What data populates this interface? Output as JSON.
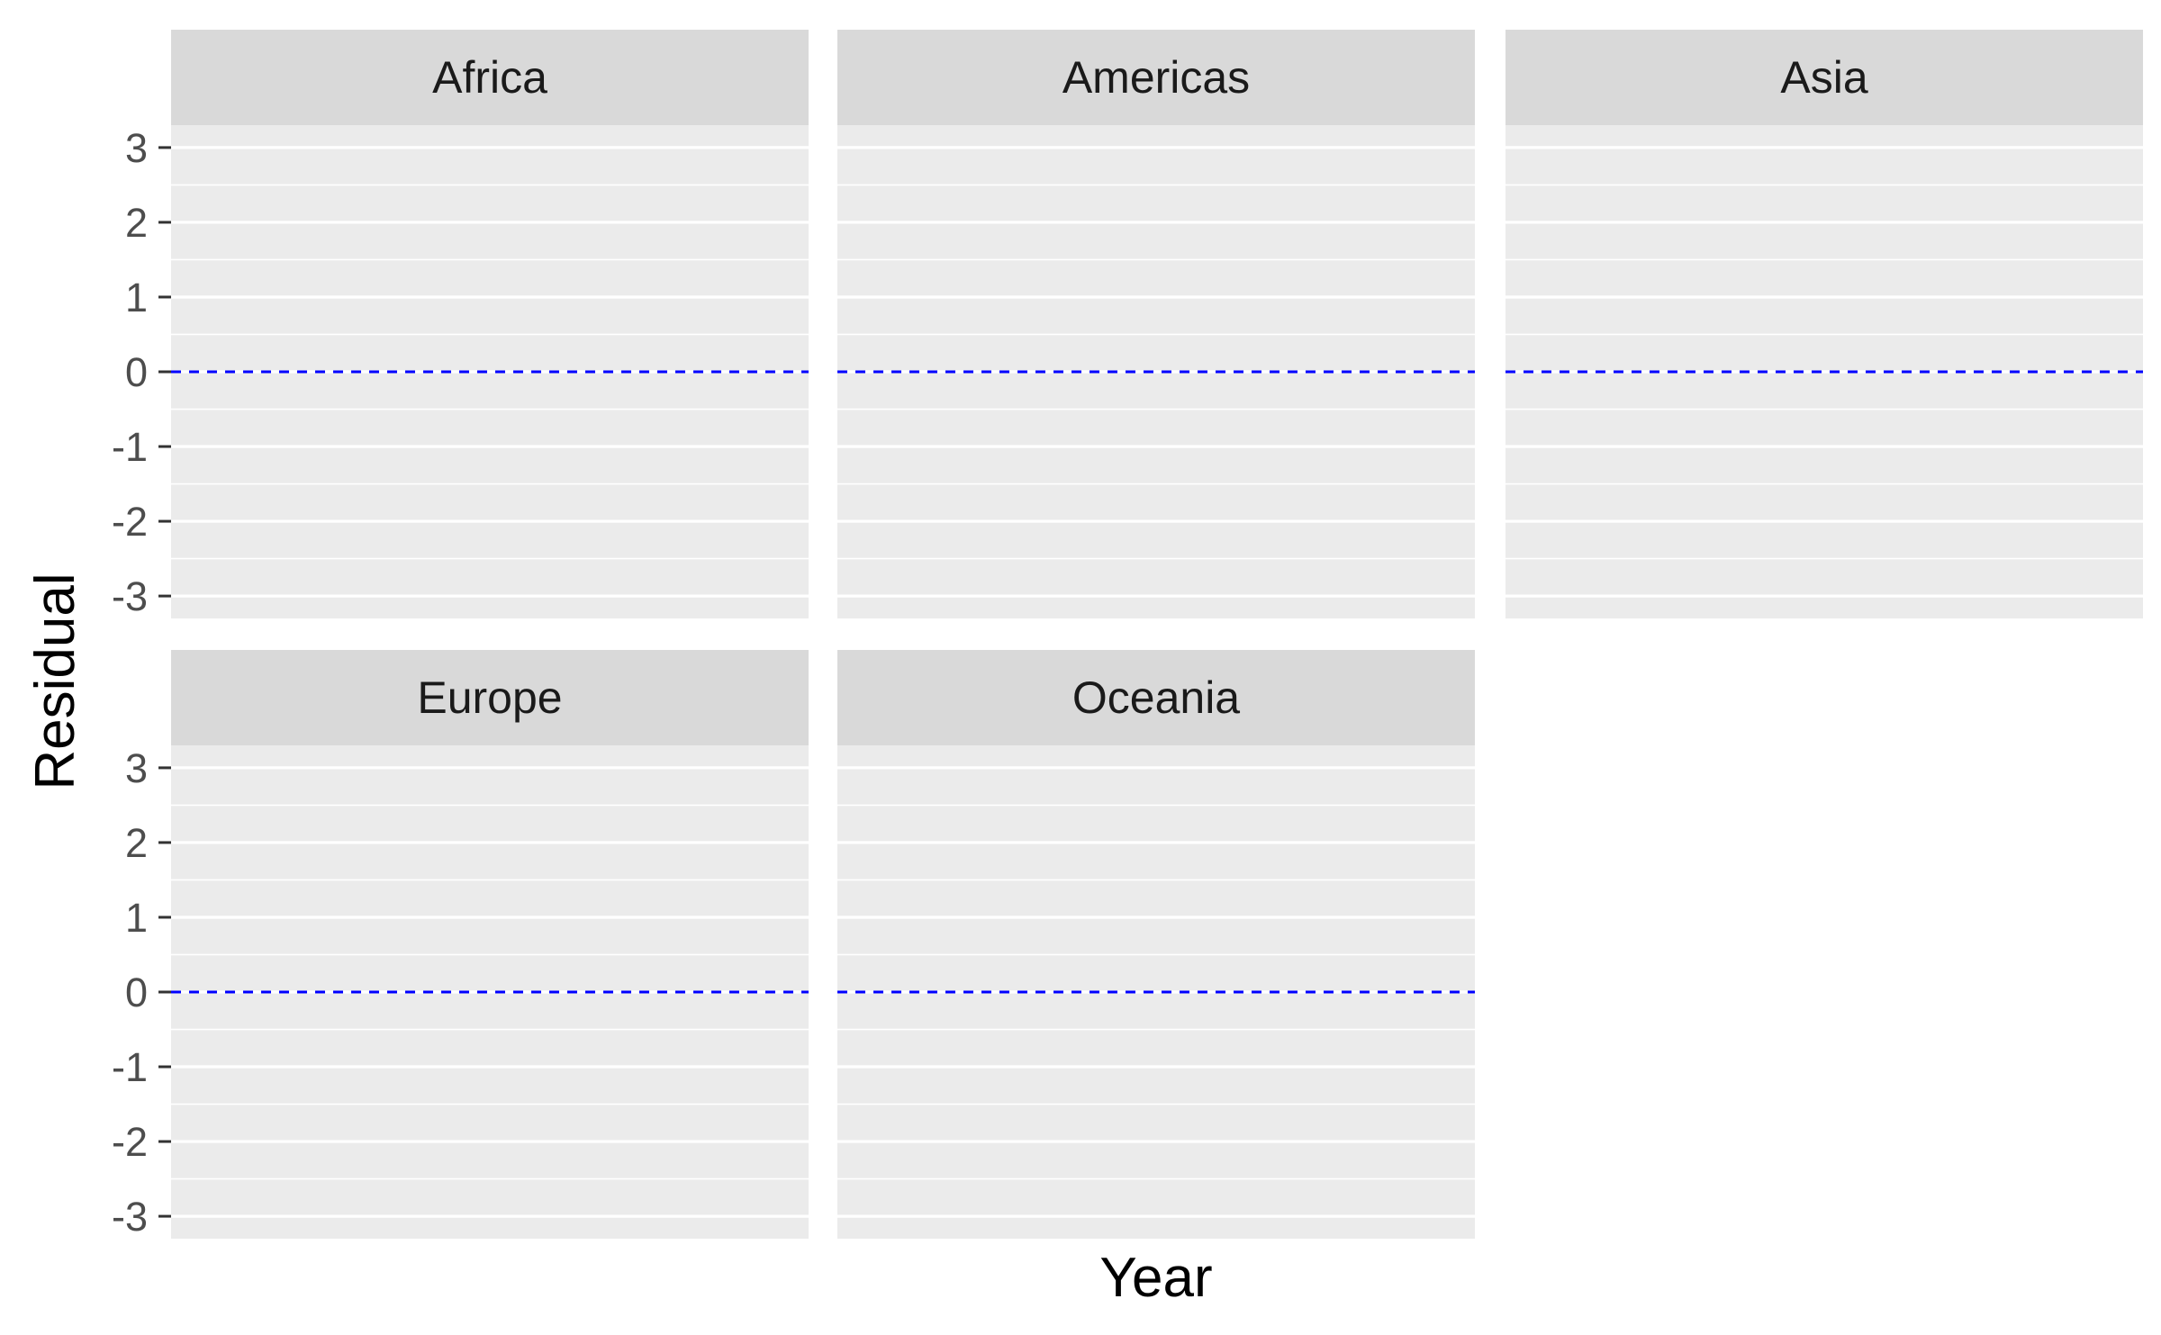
{
  "chart_data": {
    "type": "line",
    "facet_by": "continent",
    "xlabel": "Year",
    "ylabel": "Residual",
    "ylim": [
      -3.3,
      3.3
    ],
    "y_ticks": [
      3,
      2,
      1,
      0,
      -1,
      -2,
      -3
    ],
    "y_tick_labels": [
      "3",
      "2",
      "1",
      "0",
      "-1",
      "-2",
      "-3"
    ],
    "x_ticks": [],
    "grid": true,
    "reference_line": {
      "y": 0,
      "style": "dashed",
      "color": "#0000ff"
    },
    "panel_background": "#ebebeb",
    "strip_background": "#d9d9d9",
    "panels": [
      {
        "label": "Africa",
        "row": 0,
        "col": 0,
        "series": []
      },
      {
        "label": "Americas",
        "row": 0,
        "col": 1,
        "series": []
      },
      {
        "label": "Asia",
        "row": 0,
        "col": 2,
        "series": []
      },
      {
        "label": "Europe",
        "row": 1,
        "col": 0,
        "series": []
      },
      {
        "label": "Oceania",
        "row": 1,
        "col": 1,
        "series": []
      }
    ]
  }
}
